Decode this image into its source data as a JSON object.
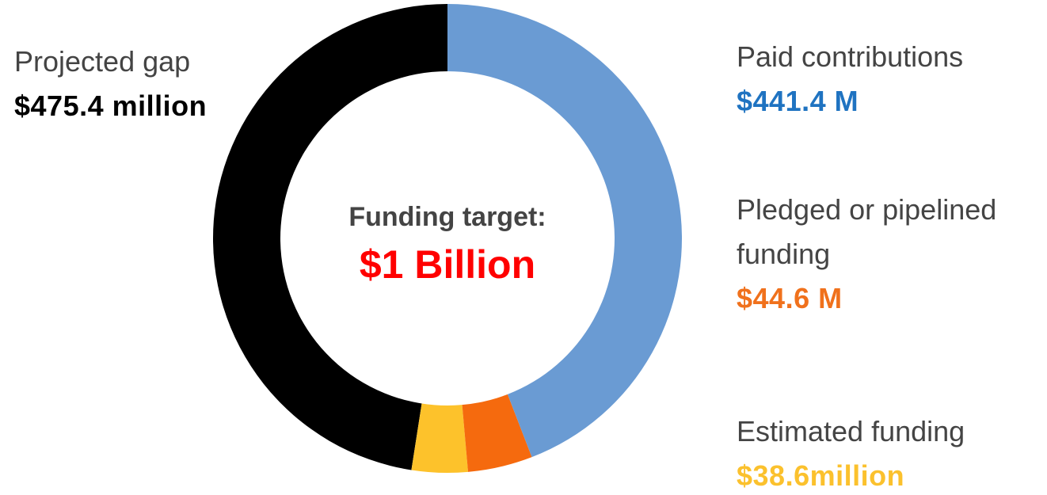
{
  "chart_data": {
    "type": "pie",
    "donut": true,
    "center_title": "Funding target:",
    "center_value": "$1 Billion",
    "categories": [
      "Paid contributions",
      "Pledged or pipelined funding",
      "Estimated funding",
      "Projected gap"
    ],
    "values": [
      441.4,
      44.6,
      38.6,
      475.4
    ],
    "value_labels": [
      "$441.4 M",
      "$44.6 M",
      "$38.6million",
      "$475.4 million"
    ],
    "colors": [
      "#6a9bd3",
      "#f56a0e",
      "#fdc22b",
      "#000000"
    ],
    "value_label_colors": [
      "#1f73c1",
      "#f0711c",
      "#fbc12d",
      "#000000"
    ],
    "center_value_color": "#ff0000",
    "start_angle": 0,
    "direction": "clockwise"
  }
}
